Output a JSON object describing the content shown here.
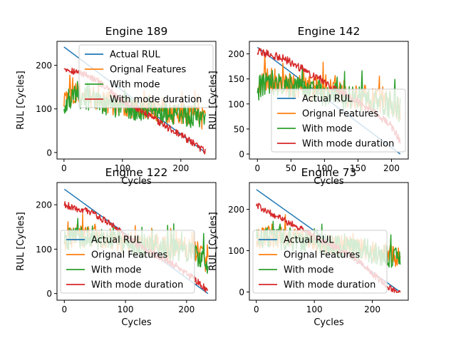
{
  "colors": {
    "actual": "#1f77b4",
    "original": "#ff7f0e",
    "mode": "#2ca02c",
    "duration": "#d62728"
  },
  "chart_data": [
    {
      "type": "line",
      "title": "Engine 189",
      "xlabel": "Cycles",
      "ylabel": "RUL [Cycles]",
      "xlim": [
        -12,
        260
      ],
      "ylim": [
        -15,
        255
      ],
      "xticks": [
        0,
        100,
        200
      ],
      "yticks": [
        0,
        100,
        200
      ],
      "n_cycles": 243,
      "legend": [
        "Actual RUL",
        "Orignal Features",
        "With mode",
        "With mode duration"
      ],
      "legend_loc": "upper-right",
      "series": [
        {
          "name": "Actual RUL",
          "x": [
            0,
            242
          ],
          "values": [
            242,
            0
          ]
        },
        {
          "name": "Orignal Features",
          "x": [
            0,
            20,
            40,
            60,
            80,
            100,
            120,
            140,
            160,
            180,
            200,
            220,
            242
          ],
          "values": [
            118,
            138,
            128,
            124,
            112,
            108,
            102,
            98,
            95,
            92,
            88,
            85,
            78
          ]
        },
        {
          "name": "With mode",
          "x": [
            0,
            20,
            40,
            60,
            80,
            100,
            120,
            140,
            160,
            180,
            200,
            220,
            242
          ],
          "values": [
            112,
            130,
            122,
            118,
            108,
            104,
            98,
            94,
            92,
            90,
            86,
            82,
            75
          ]
        },
        {
          "name": "With mode duration",
          "x": [
            0,
            20,
            40,
            60,
            80,
            100,
            120,
            140,
            160,
            180,
            200,
            220,
            242
          ],
          "values": [
            195,
            185,
            178,
            160,
            140,
            118,
            105,
            88,
            72,
            55,
            40,
            22,
            2
          ]
        }
      ]
    },
    {
      "type": "line",
      "title": "Engine 142",
      "xlabel": "Cycles",
      "ylabel": "RUL [Cycles]",
      "xlim": [
        -12,
        225
      ],
      "ylim": [
        -10,
        225
      ],
      "xticks": [
        0,
        50,
        100,
        150,
        200
      ],
      "yticks": [
        0,
        50,
        100,
        150,
        200
      ],
      "n_cycles": 214,
      "legend": [
        "Actual RUL",
        "Orignal Features",
        "With mode",
        "With mode duration"
      ],
      "legend_loc": "lower-right",
      "series": [
        {
          "name": "Actual RUL",
          "x": [
            0,
            213
          ],
          "values": [
            213,
            0
          ]
        },
        {
          "name": "Orignal Features",
          "x": [
            0,
            20,
            40,
            60,
            80,
            100,
            120,
            140,
            160,
            180,
            200,
            213
          ],
          "values": [
            140,
            148,
            140,
            136,
            132,
            128,
            124,
            118,
            112,
            106,
            100,
            92
          ]
        },
        {
          "name": "With mode",
          "x": [
            0,
            20,
            40,
            60,
            80,
            100,
            120,
            140,
            160,
            180,
            200,
            213
          ],
          "values": [
            132,
            142,
            136,
            130,
            126,
            122,
            118,
            112,
            108,
            102,
            96,
            88
          ]
        },
        {
          "name": "With mode duration",
          "x": [
            0,
            20,
            40,
            60,
            80,
            100,
            120,
            140,
            160,
            180,
            200,
            213
          ],
          "values": [
            205,
            198,
            190,
            175,
            160,
            145,
            128,
            112,
            95,
            78,
            55,
            25
          ]
        }
      ]
    },
    {
      "type": "line",
      "title": "Engine 122",
      "xlabel": "Cycles",
      "ylabel": "RUL [Cycles]",
      "xlim": [
        -12,
        248
      ],
      "ylim": [
        -15,
        250
      ],
      "xticks": [
        0,
        100,
        200
      ],
      "yticks": [
        0,
        100,
        200
      ],
      "n_cycles": 236,
      "legend": [
        "Actual RUL",
        "Orignal Features",
        "With mode",
        "With mode duration"
      ],
      "legend_loc": "lower-left",
      "series": [
        {
          "name": "Actual RUL",
          "x": [
            0,
            235
          ],
          "values": [
            235,
            0
          ]
        },
        {
          "name": "Orignal Features",
          "x": [
            0,
            20,
            40,
            60,
            80,
            100,
            120,
            140,
            160,
            180,
            200,
            220,
            235
          ],
          "values": [
            122,
            132,
            128,
            126,
            124,
            118,
            112,
            108,
            104,
            100,
            98,
            90,
            70
          ]
        },
        {
          "name": "With mode",
          "x": [
            0,
            20,
            40,
            60,
            80,
            100,
            120,
            140,
            160,
            180,
            200,
            220,
            235
          ],
          "values": [
            118,
            128,
            124,
            122,
            120,
            114,
            108,
            104,
            100,
            97,
            94,
            86,
            65
          ]
        },
        {
          "name": "With mode duration",
          "x": [
            0,
            20,
            40,
            60,
            80,
            100,
            120,
            140,
            160,
            180,
            200,
            220,
            235
          ],
          "values": [
            200,
            192,
            185,
            170,
            152,
            130,
            110,
            95,
            80,
            65,
            45,
            25,
            5
          ]
        }
      ]
    },
    {
      "type": "line",
      "title": "Engine 73",
      "xlabel": "Cycles",
      "ylabel": "RUL [Cycles]",
      "xlim": [
        -12,
        262
      ],
      "ylim": [
        -20,
        265
      ],
      "xticks": [
        0,
        100,
        200
      ],
      "yticks": [
        0,
        100,
        200
      ],
      "n_cycles": 249,
      "legend": [
        "Actual RUL",
        "Orignal Features",
        "With mode",
        "With mode duration"
      ],
      "legend_loc": "lower-left",
      "series": [
        {
          "name": "Actual RUL",
          "x": [
            0,
            248
          ],
          "values": [
            248,
            0
          ]
        },
        {
          "name": "Orignal Features",
          "x": [
            0,
            20,
            40,
            60,
            80,
            100,
            120,
            140,
            160,
            180,
            200,
            220,
            248
          ],
          "values": [
            130,
            138,
            132,
            128,
            126,
            122,
            118,
            114,
            110,
            104,
            98,
            92,
            85
          ]
        },
        {
          "name": "With mode",
          "x": [
            0,
            20,
            40,
            60,
            80,
            100,
            120,
            140,
            160,
            180,
            200,
            220,
            248
          ],
          "values": [
            124,
            134,
            128,
            124,
            122,
            118,
            114,
            110,
            106,
            100,
            94,
            88,
            80
          ]
        },
        {
          "name": "With mode duration",
          "x": [
            0,
            20,
            40,
            60,
            80,
            100,
            120,
            140,
            160,
            180,
            200,
            220,
            248
          ],
          "values": [
            210,
            195,
            180,
            165,
            150,
            135,
            120,
            105,
            90,
            70,
            45,
            20,
            -5
          ]
        }
      ]
    }
  ]
}
